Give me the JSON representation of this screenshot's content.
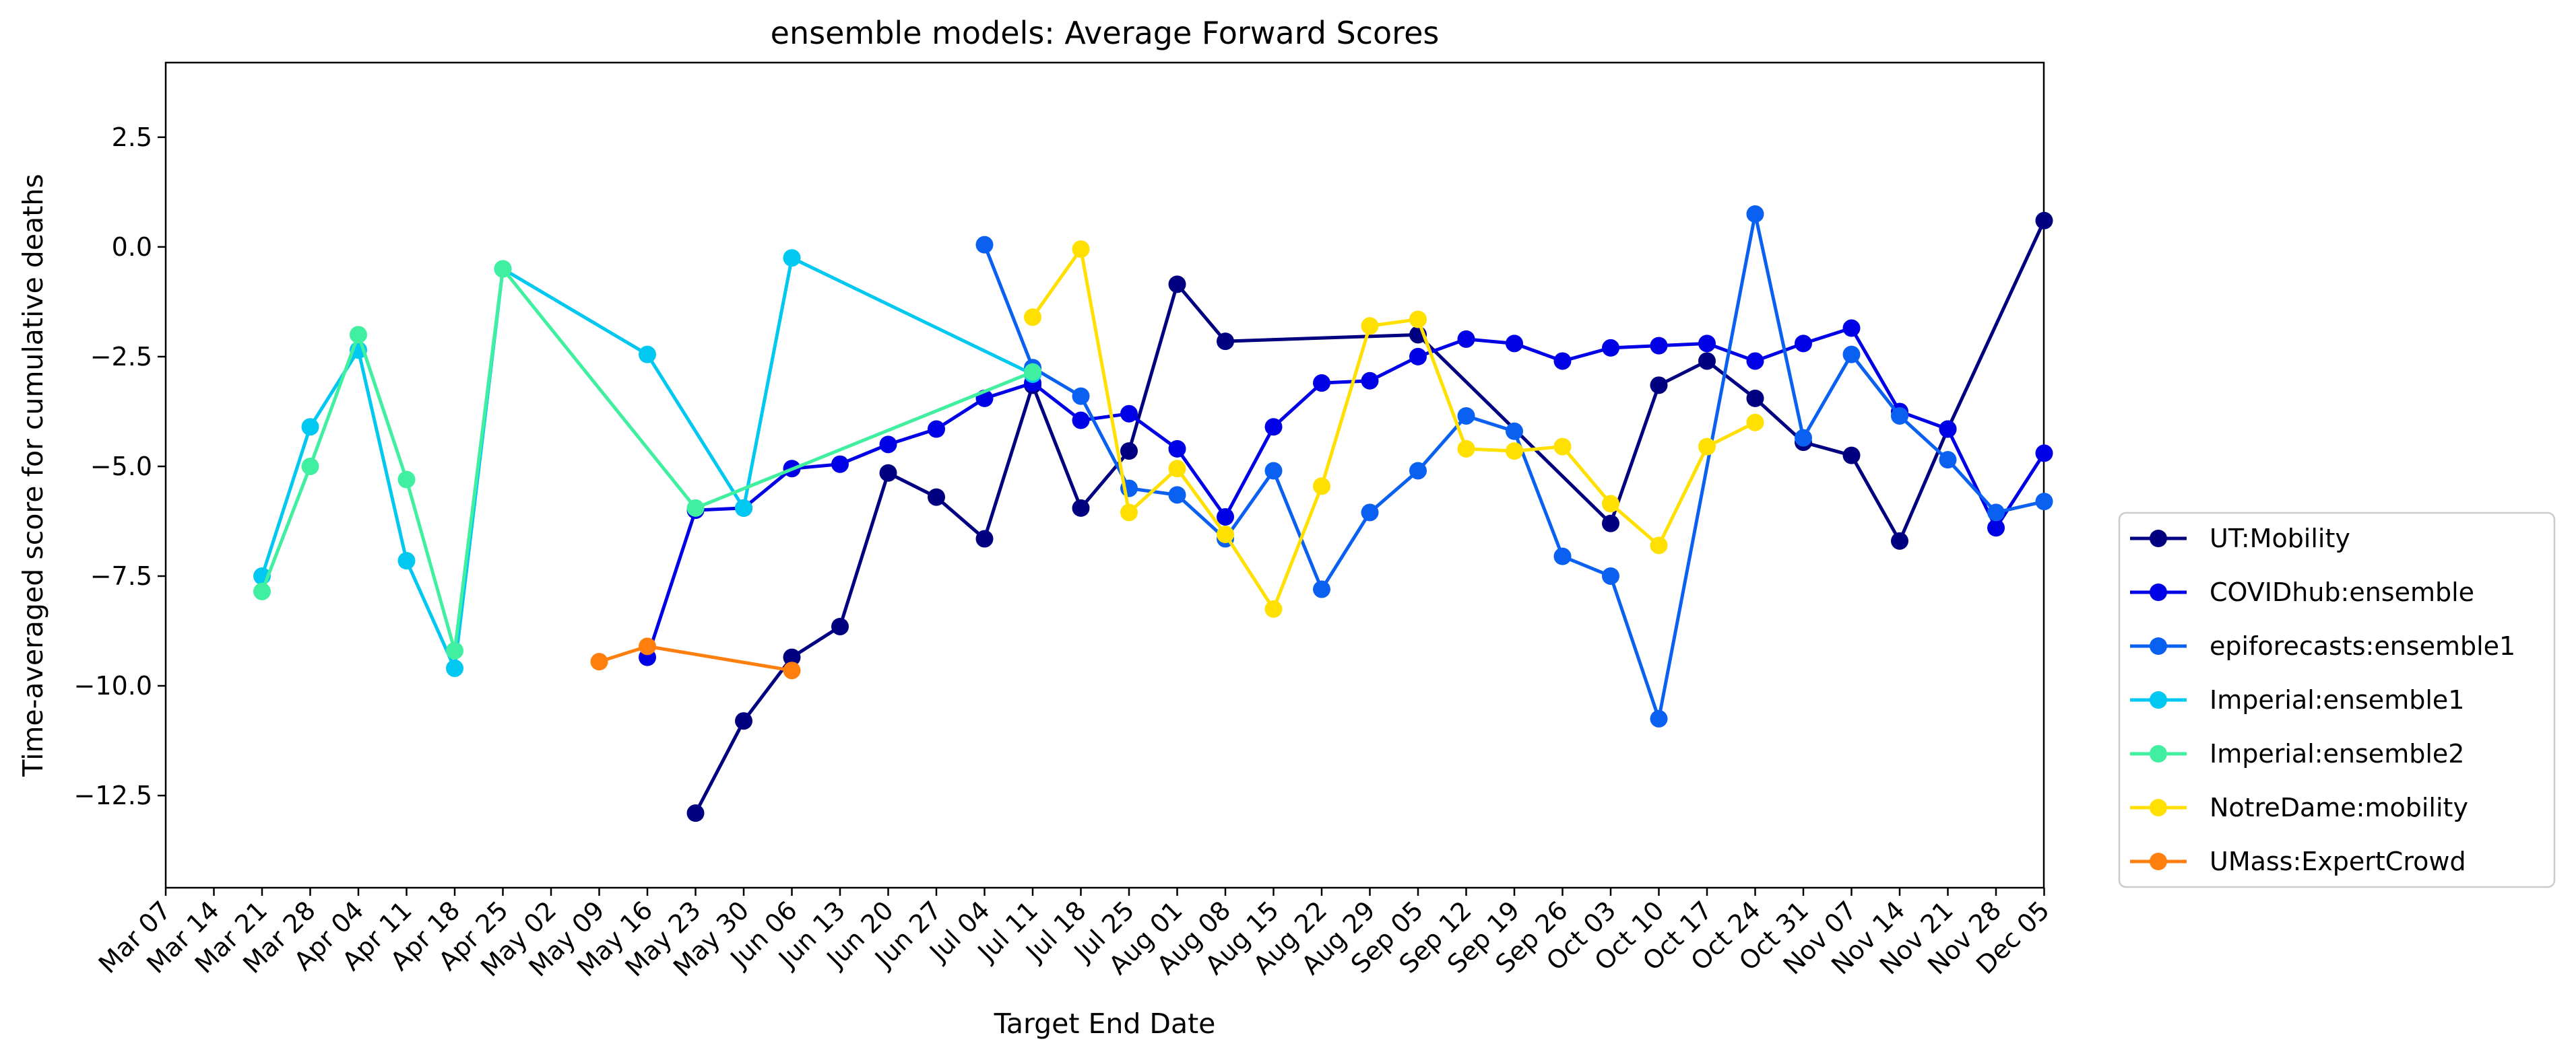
{
  "chart_data": {
    "type": "line",
    "title": "ensemble models: Average Forward Scores",
    "xlabel": "Target End Date",
    "ylabel": "Time-averaged score for cumulative deaths",
    "categories": [
      "Mar 07",
      "Mar 14",
      "Mar 21",
      "Mar 28",
      "Apr 04",
      "Apr 11",
      "Apr 18",
      "Apr 25",
      "May 02",
      "May 09",
      "May 16",
      "May 23",
      "May 30",
      "Jun 06",
      "Jun 13",
      "Jun 20",
      "Jun 27",
      "Jul 04",
      "Jul 11",
      "Jul 18",
      "Jul 25",
      "Aug 01",
      "Aug 08",
      "Aug 15",
      "Aug 22",
      "Aug 29",
      "Sep 05",
      "Sep 12",
      "Sep 19",
      "Sep 26",
      "Oct 03",
      "Oct 10",
      "Oct 17",
      "Oct 24",
      "Oct 31",
      "Nov 07",
      "Nov 14",
      "Nov 21",
      "Nov 28",
      "Dec 05"
    ],
    "ylim": [
      -14.6,
      4.2
    ],
    "yticks": [
      2.5,
      0.0,
      -2.5,
      -5.0,
      -7.5,
      -10.0,
      -12.5
    ],
    "ytick_labels": [
      "2.5",
      "0.0",
      "−2.5",
      "−5.0",
      "−7.5",
      "−10.0",
      "−12.5"
    ],
    "grid": false,
    "legend_position": "lower right, outside plot",
    "series": [
      {
        "name": "UT:Mobility",
        "color": "#000080",
        "points": [
          [
            "May 23",
            -12.9
          ],
          [
            "May 30",
            -10.8
          ],
          [
            "Jun 06",
            -9.35
          ],
          [
            "Jun 13",
            -8.65
          ],
          [
            "Jun 20",
            -5.15
          ],
          [
            "Jun 27",
            -5.7
          ],
          [
            "Jul 04",
            -6.65
          ],
          [
            "Jul 11",
            -3.15
          ],
          [
            "Jul 18",
            -5.95
          ],
          [
            "Jul 25",
            -4.65
          ],
          [
            "Aug 01",
            -0.85
          ],
          [
            "Aug 08",
            -2.15
          ],
          [
            "Sep 05",
            -2.0
          ],
          [
            "Oct 03",
            -6.3
          ],
          [
            "Oct 10",
            -3.15
          ],
          [
            "Oct 17",
            -2.6
          ],
          [
            "Oct 24",
            -3.45
          ],
          [
            "Oct 31",
            -4.45
          ],
          [
            "Nov 07",
            -4.75
          ],
          [
            "Nov 14",
            -6.7
          ],
          [
            "Nov 21",
            -4.15
          ],
          [
            "Dec 05",
            0.6
          ]
        ]
      },
      {
        "name": "COVIDhub:ensemble",
        "color": "#0000e6",
        "points": [
          [
            "May 16",
            -9.35
          ],
          [
            "May 23",
            -6.0
          ],
          [
            "May 30",
            -5.95
          ],
          [
            "Jun 06",
            -5.05
          ],
          [
            "Jun 13",
            -4.95
          ],
          [
            "Jun 20",
            -4.5
          ],
          [
            "Jun 27",
            -4.15
          ],
          [
            "Jul 04",
            -3.45
          ],
          [
            "Jul 11",
            -3.1
          ],
          [
            "Jul 18",
            -3.95
          ],
          [
            "Jul 25",
            -3.8
          ],
          [
            "Aug 01",
            -4.6
          ],
          [
            "Aug 08",
            -6.15
          ],
          [
            "Aug 15",
            -4.1
          ],
          [
            "Aug 22",
            -3.1
          ],
          [
            "Aug 29",
            -3.05
          ],
          [
            "Sep 05",
            -2.5
          ],
          [
            "Sep 12",
            -2.1
          ],
          [
            "Sep 19",
            -2.2
          ],
          [
            "Sep 26",
            -2.6
          ],
          [
            "Oct 03",
            -2.3
          ],
          [
            "Oct 10",
            -2.25
          ],
          [
            "Oct 17",
            -2.2
          ],
          [
            "Oct 24",
            -2.6
          ],
          [
            "Oct 31",
            -2.2
          ],
          [
            "Nov 07",
            -1.85
          ],
          [
            "Nov 14",
            -3.75
          ],
          [
            "Nov 21",
            -4.15
          ],
          [
            "Nov 28",
            -6.4
          ],
          [
            "Dec 05",
            -4.7
          ]
        ]
      },
      {
        "name": "epiforecasts:ensemble1",
        "color": "#0a60f0",
        "points": [
          [
            "Jul 04",
            0.05
          ],
          [
            "Jul 11",
            -2.75
          ],
          [
            "Jul 18",
            -3.4
          ],
          [
            "Jul 25",
            -5.5
          ],
          [
            "Aug 01",
            -5.65
          ],
          [
            "Aug 08",
            -6.65
          ],
          [
            "Aug 15",
            -5.1
          ],
          [
            "Aug 22",
            -7.8
          ],
          [
            "Aug 29",
            -6.05
          ],
          [
            "Sep 05",
            -5.1
          ],
          [
            "Sep 12",
            -3.85
          ],
          [
            "Sep 19",
            -4.2
          ],
          [
            "Sep 26",
            -7.05
          ],
          [
            "Oct 03",
            -7.5
          ],
          [
            "Oct 10",
            -10.75
          ],
          [
            "Oct 24",
            0.75
          ],
          [
            "Oct 31",
            -4.35
          ],
          [
            "Nov 07",
            -2.45
          ],
          [
            "Nov 14",
            -3.85
          ],
          [
            "Nov 21",
            -4.85
          ],
          [
            "Nov 28",
            -6.05
          ],
          [
            "Dec 05",
            -5.8
          ]
        ]
      },
      {
        "name": "Imperial:ensemble1",
        "color": "#00c8f0",
        "points": [
          [
            "Mar 21",
            -7.5
          ],
          [
            "Mar 28",
            -4.1
          ],
          [
            "Apr 04",
            -2.35
          ],
          [
            "Apr 11",
            -7.15
          ],
          [
            "Apr 18",
            -9.6
          ],
          [
            "Apr 25",
            -0.5
          ],
          [
            "May 16",
            -2.45
          ],
          [
            "May 30",
            -5.95
          ],
          [
            "Jun 06",
            -0.25
          ],
          [
            "Jul 11",
            -2.9
          ]
        ]
      },
      {
        "name": "Imperial:ensemble2",
        "color": "#40f0a0",
        "points": [
          [
            "Mar 21",
            -7.85
          ],
          [
            "Mar 28",
            -5.0
          ],
          [
            "Apr 04",
            -2.0
          ],
          [
            "Apr 11",
            -5.3
          ],
          [
            "Apr 18",
            -9.2
          ],
          [
            "Apr 25",
            -0.5
          ],
          [
            "May 23",
            -5.95
          ],
          [
            "Jul 11",
            -2.85
          ]
        ]
      },
      {
        "name": "NotreDame:mobility",
        "color": "#ffe000",
        "points": [
          [
            "Jul 11",
            -1.6
          ],
          [
            "Jul 18",
            -0.05
          ],
          [
            "Jul 25",
            -6.05
          ],
          [
            "Aug 01",
            -5.05
          ],
          [
            "Aug 08",
            -6.55
          ],
          [
            "Aug 15",
            -8.25
          ],
          [
            "Aug 22",
            -5.45
          ],
          [
            "Aug 29",
            -1.8
          ],
          [
            "Sep 05",
            -1.65
          ],
          [
            "Sep 12",
            -4.6
          ],
          [
            "Sep 19",
            -4.65
          ],
          [
            "Sep 26",
            -4.55
          ],
          [
            "Oct 03",
            -5.85
          ],
          [
            "Oct 10",
            -6.8
          ],
          [
            "Oct 17",
            -4.55
          ],
          [
            "Oct 24",
            -4.0
          ]
        ]
      },
      {
        "name": "UMass:ExpertCrowd",
        "color": "#ff7f0e",
        "points": [
          [
            "May 09",
            -9.45
          ],
          [
            "May 16",
            -9.1
          ],
          [
            "Jun 06",
            -9.65
          ]
        ]
      }
    ]
  }
}
